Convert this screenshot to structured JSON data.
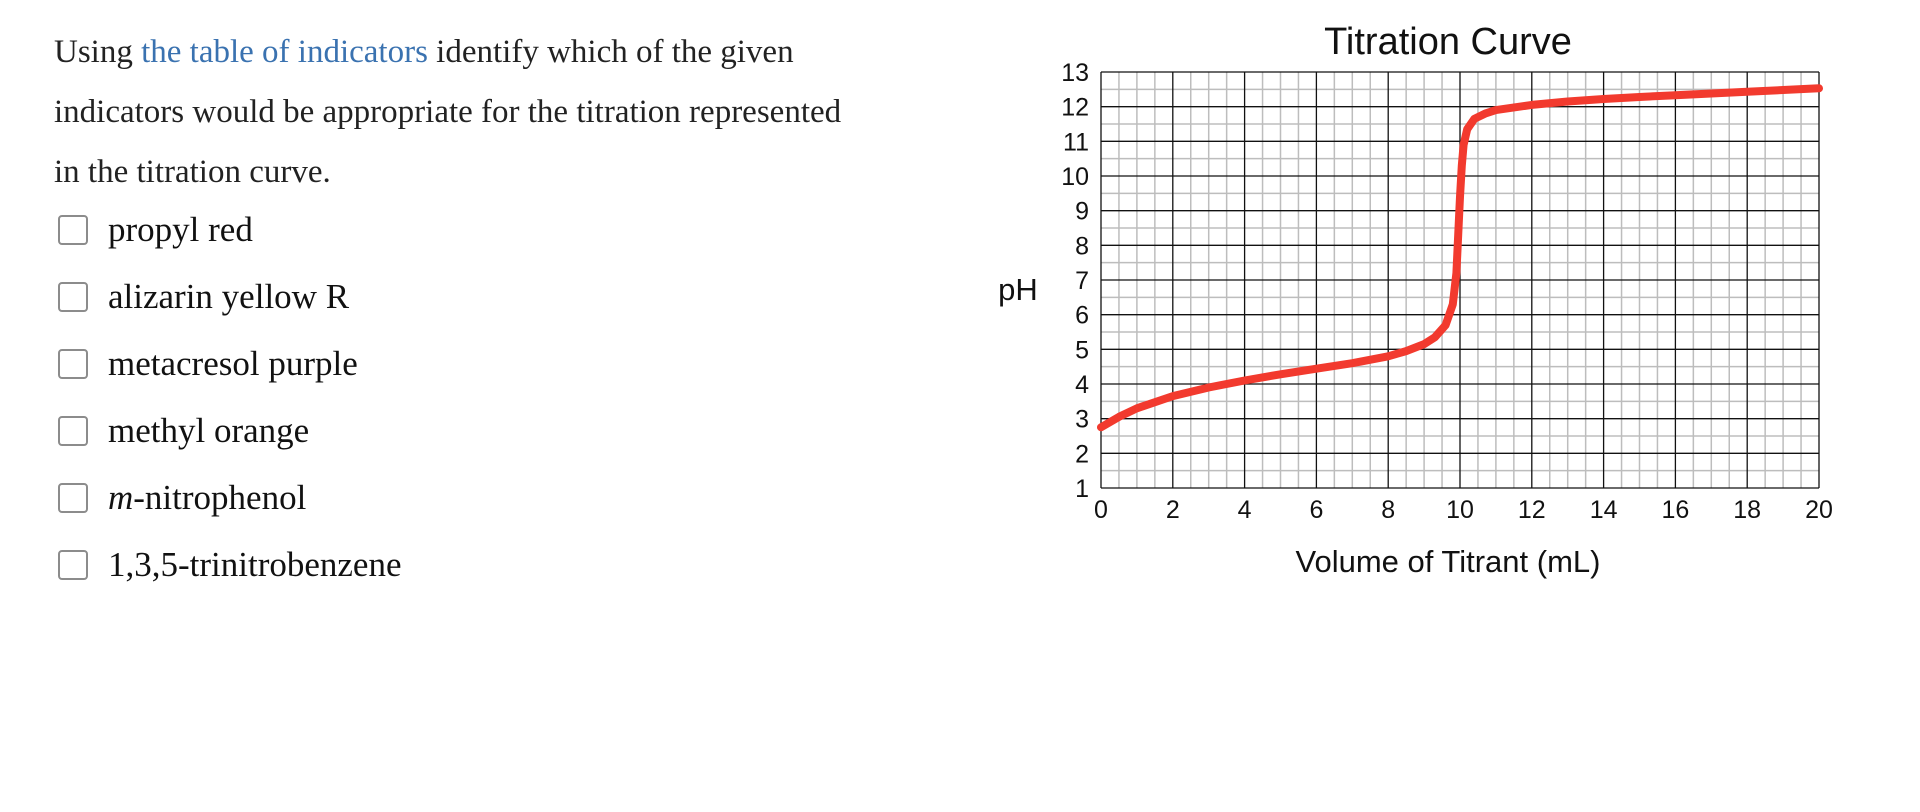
{
  "question": {
    "prefix": "Using",
    "link_text": "the table of indicators",
    "line1_rest": "identify which of the given",
    "line2": "indicators would be appropriate for the titration represented",
    "line3": "in the titration curve."
  },
  "options": [
    {
      "label": "propyl red",
      "italic_prefix": "",
      "checked": false
    },
    {
      "label": "alizarin yellow R",
      "italic_prefix": "",
      "checked": false
    },
    {
      "label": "metacresol purple",
      "italic_prefix": "",
      "checked": false
    },
    {
      "label": "methyl orange",
      "italic_prefix": "",
      "checked": false
    },
    {
      "label": "-nitrophenol",
      "italic_prefix": "m",
      "checked": false
    },
    {
      "label": "1,3,5-trinitrobenzene",
      "italic_prefix": "",
      "checked": false
    }
  ],
  "colors": {
    "link": "#3a72b0",
    "curve": "#f23a2e",
    "grid_major": "#111111",
    "grid_minor": "#bdbdbd"
  },
  "chart_data": {
    "type": "line",
    "title": "Titration Curve",
    "xlabel": "Volume of Titrant (mL)",
    "ylabel": "pH",
    "xlim": [
      0,
      20
    ],
    "ylim": [
      1,
      13
    ],
    "x_ticks": [
      "0",
      "2",
      "4",
      "6",
      "8",
      "10",
      "12",
      "14",
      "16",
      "18",
      "20"
    ],
    "y_ticks": [
      "1",
      "2",
      "3",
      "4",
      "5",
      "6",
      "7",
      "8",
      "9",
      "10",
      "11",
      "12",
      "13"
    ],
    "grid": true,
    "series": [
      {
        "x": [
          0,
          0.5,
          1,
          2,
          3,
          4,
          5,
          6,
          7,
          8,
          8.5,
          9,
          9.3,
          9.6,
          9.8,
          9.9,
          9.95,
          10,
          10.05,
          10.1,
          10.2,
          10.4,
          10.7,
          11,
          12,
          13,
          14,
          15,
          16,
          17,
          18,
          19,
          20
        ],
        "y": [
          2.75,
          3.05,
          3.3,
          3.65,
          3.9,
          4.1,
          4.28,
          4.44,
          4.6,
          4.8,
          4.95,
          5.15,
          5.35,
          5.7,
          6.3,
          7.2,
          8.3,
          9.4,
          10.3,
          10.9,
          11.35,
          11.65,
          11.8,
          11.9,
          12.05,
          12.15,
          12.22,
          12.28,
          12.33,
          12.38,
          12.43,
          12.48,
          12.53
        ]
      }
    ]
  }
}
